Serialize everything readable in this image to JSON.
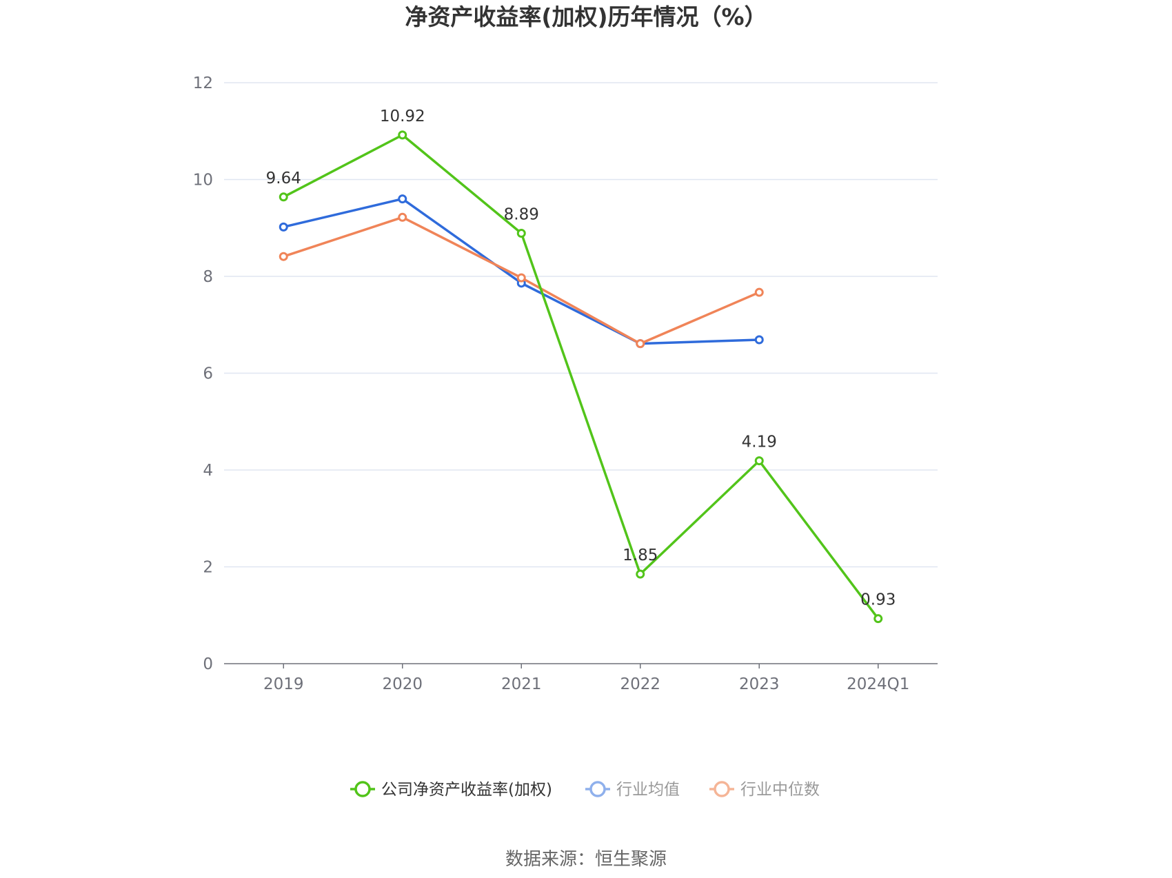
{
  "chart_data": {
    "type": "line",
    "title": "净资产收益率(加权)历年情况（%）",
    "categories": [
      "2019",
      "2020",
      "2021",
      "2022",
      "2023",
      "2024Q1"
    ],
    "ylim": [
      0,
      12
    ],
    "yticks": [
      0,
      2,
      4,
      6,
      8,
      10,
      12
    ],
    "grid": true,
    "legend_position": "bottom",
    "series": [
      {
        "name": "公司净资产收益率(加权)",
        "color": "#52c41a",
        "values": [
          9.64,
          10.92,
          8.89,
          1.85,
          4.19,
          0.93
        ],
        "labels": [
          "9.64",
          "10.92",
          "8.89",
          "1.85",
          "4.19",
          "0.93"
        ],
        "show_labels": true
      },
      {
        "name": "行业均值",
        "color": "#2f6bdb",
        "legend_color": "#8fb0ec",
        "values": [
          9.02,
          9.6,
          7.86,
          6.61,
          6.69,
          null
        ],
        "show_labels": false
      },
      {
        "name": "行业中位数",
        "color": "#f08458",
        "legend_color": "#f5b597",
        "values": [
          8.41,
          9.22,
          7.97,
          6.61,
          7.67,
          null
        ],
        "show_labels": false
      }
    ]
  },
  "footer": {
    "source": "数据来源：恒生聚源"
  }
}
